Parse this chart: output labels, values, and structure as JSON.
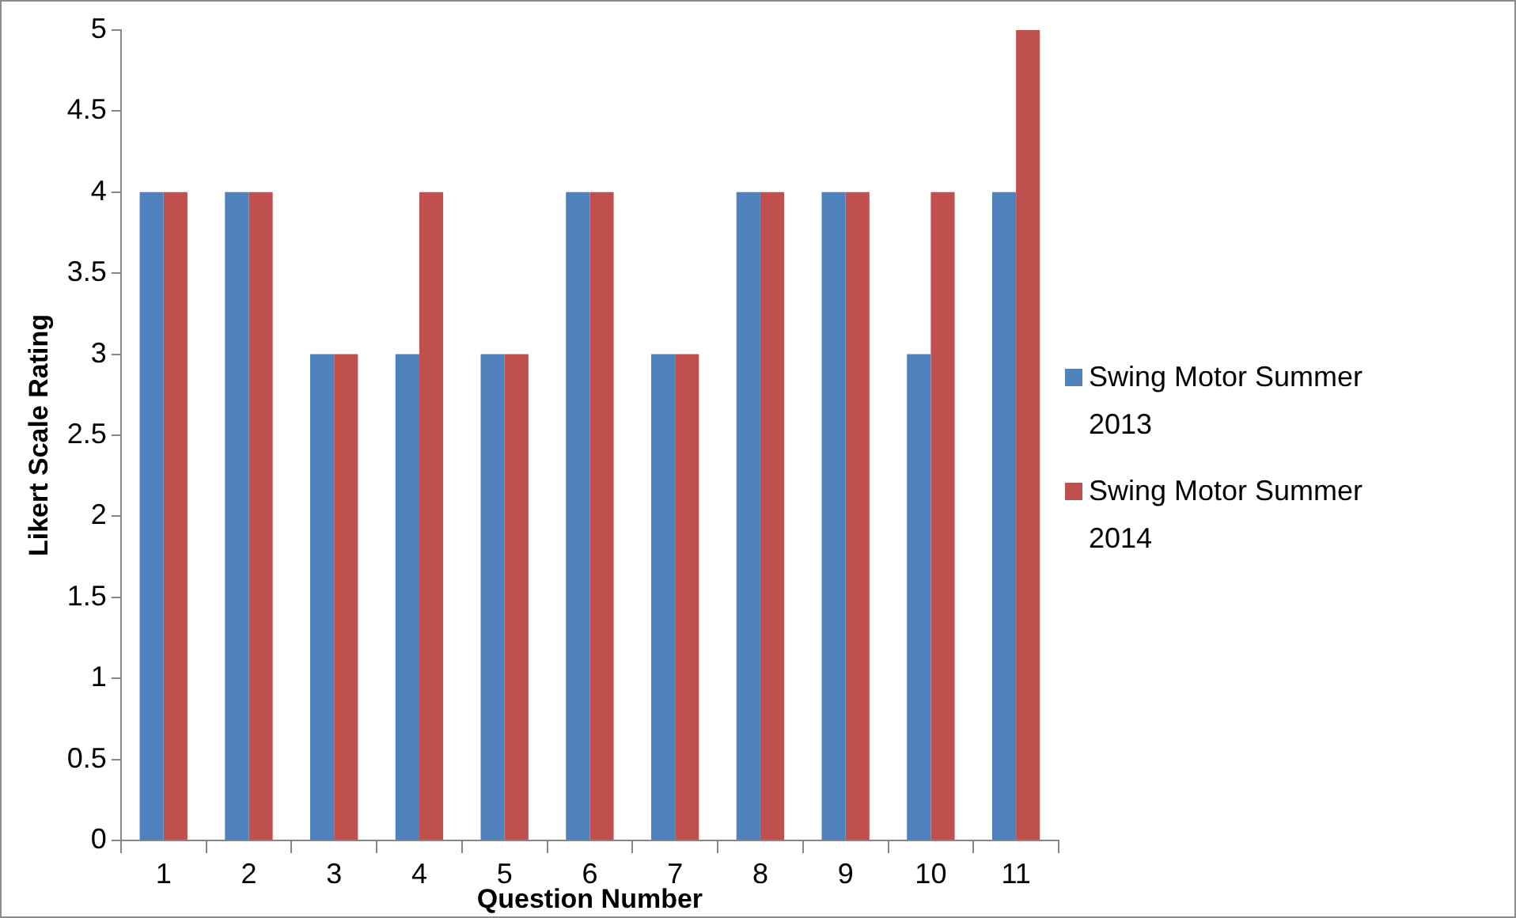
{
  "chart_data": {
    "type": "bar",
    "xlabel": "Question Number",
    "ylabel": "Likert Scale Rating",
    "categories": [
      "1",
      "2",
      "3",
      "4",
      "5",
      "6",
      "7",
      "8",
      "9",
      "10",
      "11"
    ],
    "series": [
      {
        "name": "Swing Motor Summer 2013",
        "color": "#4f81bd",
        "values": [
          4,
          4,
          3,
          3,
          3,
          4,
          3,
          4,
          4,
          3,
          4
        ]
      },
      {
        "name": "Swing Motor Summer 2014",
        "color": "#c0504d",
        "values": [
          4,
          4,
          3,
          4,
          3,
          4,
          3,
          4,
          4,
          4,
          5
        ]
      }
    ],
    "ylim": [
      0,
      5
    ],
    "yticks": [
      0,
      0.5,
      1,
      1.5,
      2,
      2.5,
      3,
      3.5,
      4,
      4.5,
      5
    ],
    "grid": false,
    "legend": "right"
  }
}
